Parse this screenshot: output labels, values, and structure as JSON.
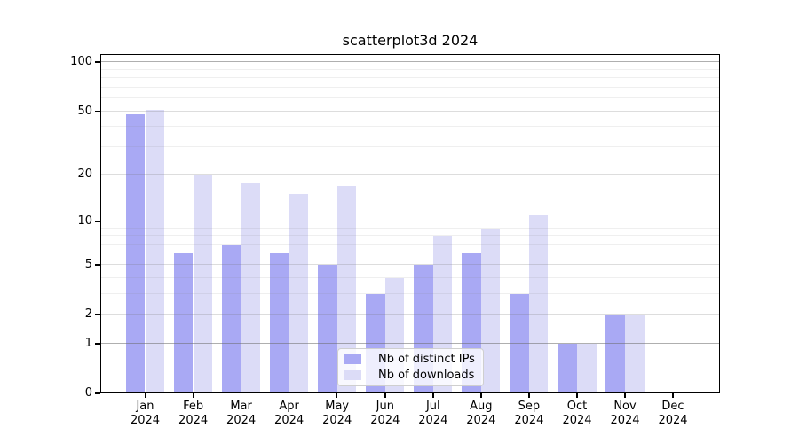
{
  "title": "scatterplot3d 2024",
  "chart_data": {
    "type": "bar",
    "title": "scatterplot3d 2024",
    "y_scale": "log1p",
    "ylim": [
      0,
      112
    ],
    "grid": "on",
    "legend_position": "inside-bottom-center",
    "months": [
      {
        "label": "Jan",
        "year": "2024"
      },
      {
        "label": "Feb",
        "year": "2024"
      },
      {
        "label": "Mar",
        "year": "2024"
      },
      {
        "label": "Apr",
        "year": "2024"
      },
      {
        "label": "May",
        "year": "2024"
      },
      {
        "label": "Jun",
        "year": "2024"
      },
      {
        "label": "Jul",
        "year": "2024"
      },
      {
        "label": "Aug",
        "year": "2024"
      },
      {
        "label": "Sep",
        "year": "2024"
      },
      {
        "label": "Oct",
        "year": "2024"
      },
      {
        "label": "Nov",
        "year": "2024"
      },
      {
        "label": "Dec",
        "year": "2024"
      }
    ],
    "series": [
      {
        "name": "Nb of distinct IPs",
        "color": "#a9a9f4",
        "values": [
          48,
          6,
          7,
          6,
          5,
          3,
          5,
          6,
          3,
          1,
          2,
          0
        ]
      },
      {
        "name": "Nb of downloads",
        "color": "#dcdcf7",
        "values": [
          51,
          20,
          18,
          15,
          17,
          4,
          8,
          9,
          11,
          1,
          2,
          0
        ]
      }
    ],
    "y_axis": {
      "ticks": [
        {
          "value": 0,
          "label": "0"
        },
        {
          "value": 1,
          "label": "1"
        },
        {
          "value": 2,
          "label": "2"
        },
        {
          "value": 5,
          "label": "5"
        },
        {
          "value": 10,
          "label": "10"
        },
        {
          "value": 20,
          "label": "20"
        },
        {
          "value": 50,
          "label": "50"
        },
        {
          "value": 100,
          "label": "100"
        }
      ],
      "strong_gridlines": [
        1,
        10,
        100
      ],
      "minor_gridlines": [
        3,
        4,
        6,
        7,
        8,
        9,
        30,
        40,
        60,
        70,
        80,
        90
      ]
    }
  }
}
